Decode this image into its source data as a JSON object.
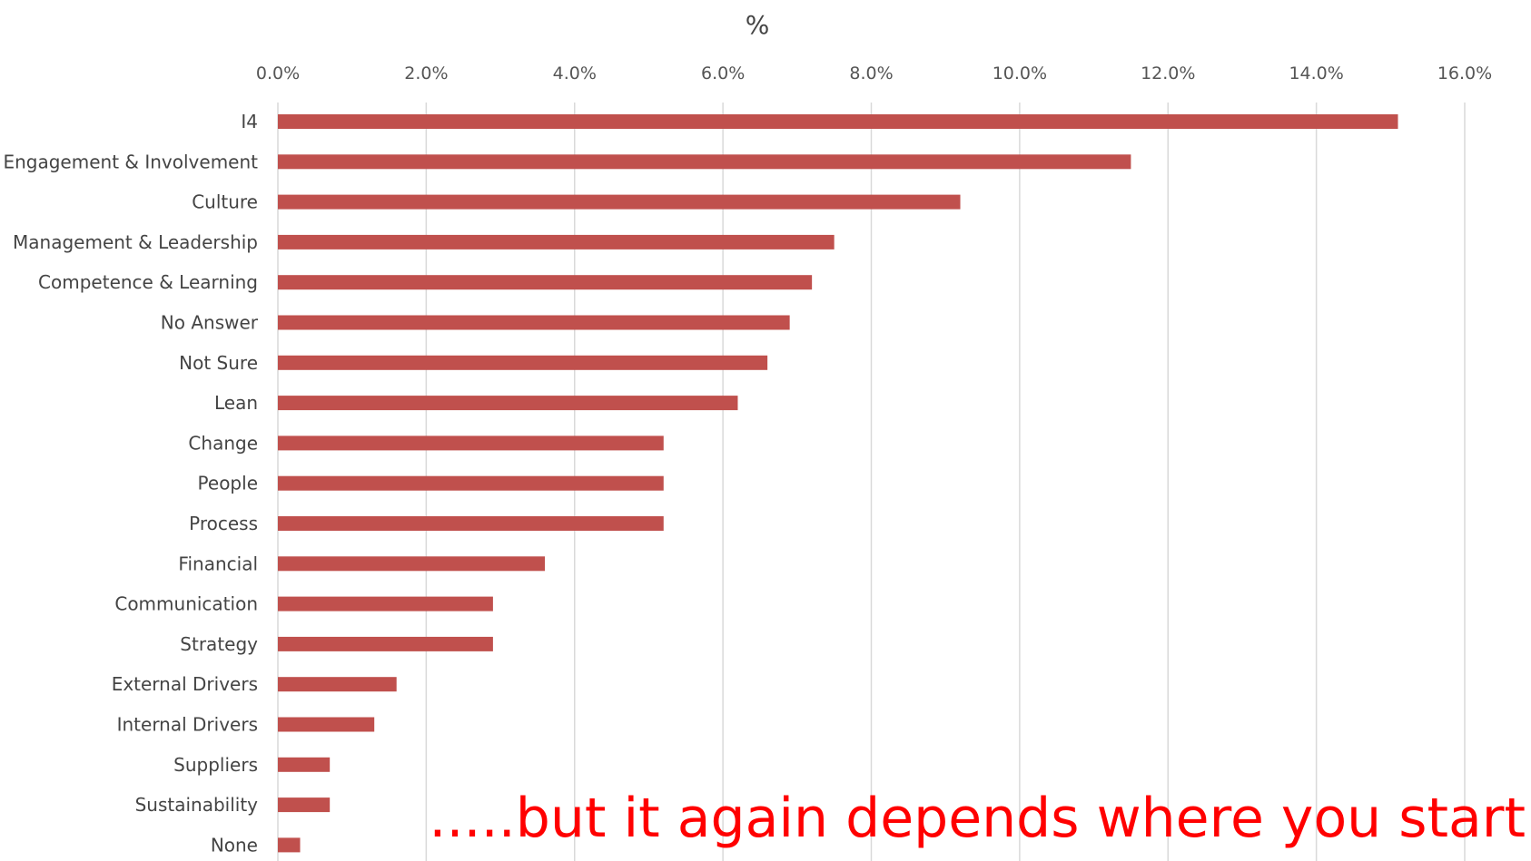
{
  "chart_data": {
    "type": "bar",
    "orientation": "horizontal",
    "title": "%",
    "xlabel": "",
    "ylabel": "",
    "xlim": [
      0,
      16
    ],
    "x_ticks": [
      "0.0%",
      "2.0%",
      "4.0%",
      "6.0%",
      "8.0%",
      "10.0%",
      "12.0%",
      "14.0%",
      "16.0%"
    ],
    "x_axis_position": "top",
    "grid": true,
    "legend": "none",
    "categories": [
      "I4",
      "Engagement & Involvement",
      "Culture",
      "Management & Leadership",
      "Competence & Learning",
      "No Answer",
      "Not Sure",
      "Lean",
      "Change",
      "People",
      "Process",
      "Financial",
      "Communication",
      "Strategy",
      "External Drivers",
      "Internal Drivers",
      "Suppliers",
      "Sustainability",
      "None"
    ],
    "values": [
      15.1,
      11.5,
      9.2,
      7.5,
      7.2,
      6.9,
      6.6,
      6.2,
      5.2,
      5.2,
      5.2,
      3.6,
      2.9,
      2.9,
      1.6,
      1.3,
      0.7,
      0.7,
      0.3
    ],
    "bar_color": "#c0504d",
    "annotation": {
      "text": ".....but it again depends where you start",
      "color": "#ff0000"
    }
  }
}
